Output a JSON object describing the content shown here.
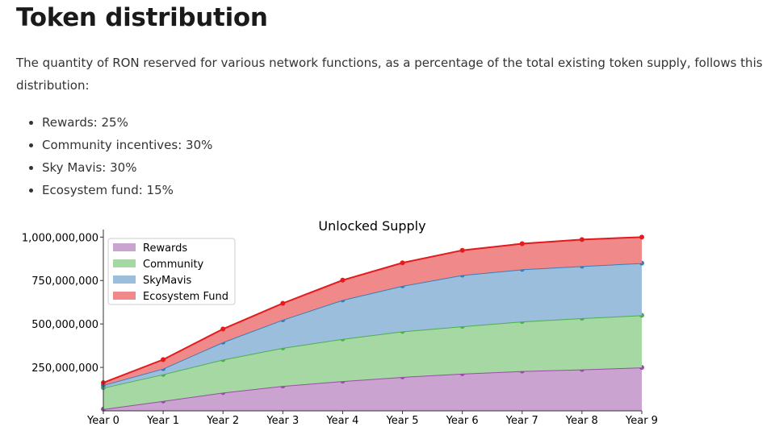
{
  "title": "Token distribution",
  "intro": "The quantity of RON reserved for various network functions, as a percentage of the total existing token supply, follows this distribution:",
  "bullets": [
    "Rewards: 25%",
    "Community incentives: 30%",
    "Sky Mavis: 30%",
    "Ecosystem fund: 15%"
  ],
  "chart_data": {
    "type": "area",
    "stacked": true,
    "title": "Unlocked Supply",
    "xlabel": "",
    "ylabel": "",
    "categories": [
      "Year 0",
      "Year 1",
      "Year 2",
      "Year 3",
      "Year 4",
      "Year 5",
      "Year 6",
      "Year 7",
      "Year 8",
      "Year 9"
    ],
    "ylim": [
      0,
      1020000000
    ],
    "yticks": [
      250000000,
      500000000,
      750000000,
      1000000000
    ],
    "ytick_labels": [
      "250,000,000",
      "500,000,000",
      "750,000,000",
      "1,000,000,000"
    ],
    "legend_position": "top-left",
    "series": [
      {
        "name": "Rewards",
        "color": "#984ea3",
        "fill": "#cba3d0",
        "values": [
          10000000,
          57000000,
          105000000,
          143000000,
          171000000,
          195000000,
          214000000,
          229000000,
          238000000,
          250000000
        ]
      },
      {
        "name": "Community",
        "color": "#4daf4a",
        "fill": "#a6d8a3",
        "values": [
          123000000,
          153000000,
          190000000,
          219000000,
          243000000,
          262000000,
          272000000,
          285000000,
          295000000,
          300000000
        ]
      },
      {
        "name": "SkyMavis",
        "color": "#377eb8",
        "fill": "#9bbedd",
        "values": [
          15000000,
          33000000,
          100000000,
          162000000,
          224000000,
          262000000,
          295000000,
          300000000,
          300000000,
          300000000
        ]
      },
      {
        "name": "Ecosystem Fund",
        "color": "#e41a1c",
        "fill": "#f08a8a",
        "values": [
          14000000,
          52000000,
          76000000,
          95000000,
          114000000,
          133000000,
          143000000,
          148000000,
          153000000,
          150000000
        ]
      }
    ]
  }
}
